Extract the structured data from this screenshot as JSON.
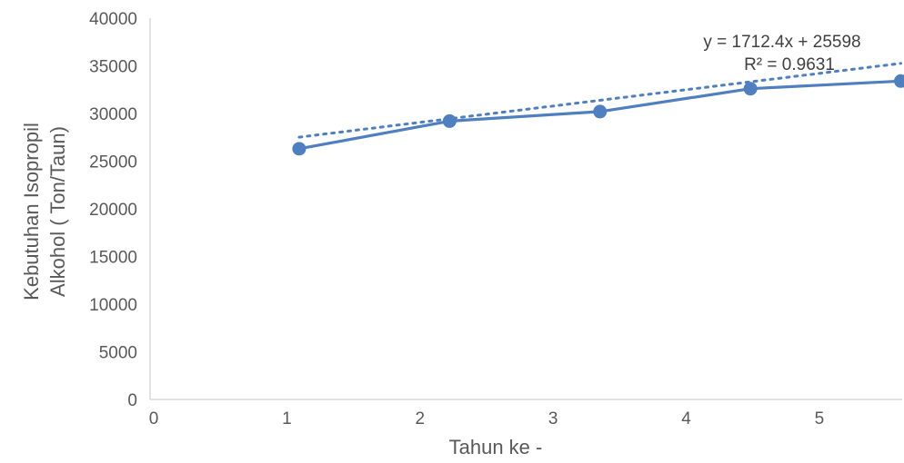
{
  "chart_data": {
    "type": "line",
    "xlabel": "Tahun ke -",
    "ylabel_lines": [
      "Kebutuhan Isopropil",
      "Alkohol ( Ton/Taun)"
    ],
    "xlim": [
      0,
      5.65
    ],
    "ylim": [
      0,
      40000
    ],
    "x_ticks": [
      "0",
      "1",
      "2",
      "3",
      "4",
      "5"
    ],
    "y_ticks": [
      "0",
      "5000",
      "10000",
      "15000",
      "20000",
      "25000",
      "30000",
      "35000",
      "40000"
    ],
    "series": [
      {
        "x": [
          1.12,
          2.25,
          3.38,
          4.51,
          5.64
        ],
        "values": [
          26300,
          29200,
          30200,
          32600,
          33400
        ],
        "color": "#4f7fbe",
        "marker": "circle"
      }
    ],
    "trendline": {
      "kind": "linear",
      "slope": 1712.4,
      "intercept": 25598,
      "style": "dotted",
      "color": "#4f7fbe",
      "x_range": [
        1.12,
        5.64
      ]
    },
    "annotations": [
      "y = 1712.4x + 25598",
      "R² = 0.9631"
    ],
    "grid": false,
    "legend": "none"
  }
}
